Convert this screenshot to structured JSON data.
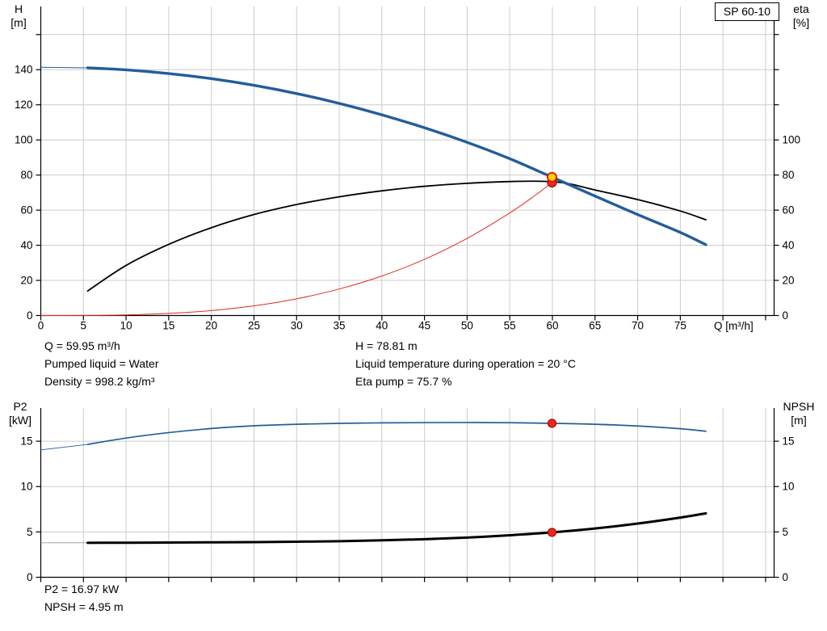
{
  "title_box": "SP 60-10",
  "colors": {
    "h_curve": "#235d9a",
    "eta_curve": "#000000",
    "duty_curve": "#e02b20",
    "p2_curve": "#235d9a",
    "npsh_curve": "#000000",
    "npsh_lead": "#999999",
    "grid": "#cccccc",
    "axis": "#000000",
    "duty_marker_fill": "#f42613",
    "duty_marker_ring": "#9e0b0f",
    "head_marker_fill": "#ffd400",
    "head_marker_ring": "#e01010"
  },
  "readout_top": {
    "col1": [
      "Q = 59.95 m³/h",
      "Pumped liquid = Water",
      "Density = 998.2 kg/m³"
    ],
    "col2": [
      "H = 78.81 m",
      "Liquid temperature during operation = 20 °C",
      "Eta pump = 75.7 %"
    ]
  },
  "readout_bottom": [
    "P2 = 16.97 kW",
    "NPSH = 4.95 m"
  ],
  "chart_data": [
    {
      "name": "performance",
      "type": "line",
      "x": {
        "title": "Q [m³/h]",
        "min": 0,
        "max": 86,
        "ticks": [
          0,
          5,
          10,
          15,
          20,
          25,
          30,
          35,
          40,
          45,
          50,
          55,
          60,
          65,
          70,
          75,
          80,
          85
        ],
        "labeled_max": 75
      },
      "y_left": {
        "title": [
          "H",
          "[m]"
        ],
        "min": 0,
        "max": 176,
        "ticks": [
          0,
          20,
          40,
          60,
          80,
          100,
          120,
          140,
          160
        ],
        "labeled_max": 140
      },
      "y_right": {
        "title": [
          "eta",
          "[%]"
        ],
        "min": 0,
        "max": 176,
        "ticks": [
          0,
          20,
          40,
          60,
          80,
          100,
          120,
          140,
          160
        ],
        "labeled_max": 100
      },
      "series": [
        {
          "name": "duty-curve",
          "color_key": "duty_curve",
          "width": 1,
          "points": [
            [
              0,
              0
            ],
            [
              5,
              0.04
            ],
            [
              10,
              0.35
            ],
            [
              15,
              1.2
            ],
            [
              20,
              2.8
            ],
            [
              25,
              5.5
            ],
            [
              30,
              9.5
            ],
            [
              35,
              15.1
            ],
            [
              40,
              22.5
            ],
            [
              45,
              32
            ],
            [
              50,
              43.9
            ],
            [
              55,
              58.4
            ],
            [
              58,
              68.5
            ],
            [
              59.95,
              75.7
            ]
          ]
        },
        {
          "name": "eta-curve",
          "color_key": "eta_curve",
          "width": 1.8,
          "points": [
            [
              5.5,
              14
            ],
            [
              10,
              28.5
            ],
            [
              15,
              40.5
            ],
            [
              20,
              50
            ],
            [
              25,
              57.5
            ],
            [
              30,
              63.2
            ],
            [
              35,
              67.6
            ],
            [
              40,
              71
            ],
            [
              45,
              73.6
            ],
            [
              50,
              75.3
            ],
            [
              55,
              76.3
            ],
            [
              58,
              76.5
            ],
            [
              60,
              76.2
            ],
            [
              62,
              75.0
            ],
            [
              65,
              71.5
            ],
            [
              70,
              66
            ],
            [
              75,
              59.5
            ],
            [
              78,
              54.5
            ]
          ]
        },
        {
          "name": "h-curve",
          "color_key": "h_curve",
          "width": 3.4,
          "lead": [
            [
              0,
              141.4
            ],
            [
              5.5,
              141.05
            ]
          ],
          "lead_width": 1,
          "points": [
            [
              5.5,
              141.05
            ],
            [
              10,
              139.9
            ],
            [
              15,
              137.8
            ],
            [
              20,
              134.9
            ],
            [
              25,
              131.1
            ],
            [
              30,
              126.4
            ],
            [
              35,
              120.8
            ],
            [
              40,
              114.3
            ],
            [
              45,
              106.9
            ],
            [
              50,
              98.6
            ],
            [
              55,
              89.3
            ],
            [
              59.95,
              78.81
            ],
            [
              65,
              68.0
            ],
            [
              70,
              57.5
            ],
            [
              75,
              47.3
            ],
            [
              78,
              40.3
            ]
          ]
        }
      ],
      "markers": [
        {
          "name": "duty-point-eta",
          "x": 59.95,
          "y": 75.7,
          "r": 5.5,
          "fill_key": "duty_marker_fill",
          "ring_key": "duty_marker_ring",
          "ring_width": 1.2
        },
        {
          "name": "duty-point-head",
          "x": 59.95,
          "y": 78.81,
          "r": 5.5,
          "fill_key": "head_marker_fill",
          "ring_key": "head_marker_ring",
          "ring_width": 1.8
        }
      ]
    },
    {
      "name": "power-npsh",
      "type": "line",
      "x": {
        "title": "",
        "min": 0,
        "max": 86,
        "ticks": [
          0,
          5,
          10,
          15,
          20,
          25,
          30,
          35,
          40,
          45,
          50,
          55,
          60,
          65,
          70,
          75,
          80,
          85
        ],
        "labeled_max": null
      },
      "y_left": {
        "title": [
          "P2",
          "[kW]"
        ],
        "min": 0,
        "max": 18.66,
        "ticks": [
          0,
          5,
          10,
          15
        ],
        "labeled_max": 15
      },
      "y_right": {
        "title": [
          "NPSH",
          "[m]"
        ],
        "min": 0,
        "max": 18.66,
        "ticks": [
          0,
          5,
          10,
          15
        ],
        "labeled_max": 15
      },
      "series": [
        {
          "name": "p2-curve",
          "color_key": "p2_curve",
          "width": 1.7,
          "lead": [
            [
              0,
              14.05
            ],
            [
              5.5,
              14.65
            ]
          ],
          "lead_width": 0.9,
          "points": [
            [
              5.5,
              14.65
            ],
            [
              10,
              15.35
            ],
            [
              15,
              15.95
            ],
            [
              20,
              16.4
            ],
            [
              25,
              16.7
            ],
            [
              30,
              16.87
            ],
            [
              35,
              16.97
            ],
            [
              40,
              17.02
            ],
            [
              45,
              17.05
            ],
            [
              50,
              17.06
            ],
            [
              55,
              17.04
            ],
            [
              59.95,
              16.97
            ],
            [
              65,
              16.87
            ],
            [
              70,
              16.68
            ],
            [
              75,
              16.38
            ],
            [
              78,
              16.1
            ]
          ]
        },
        {
          "name": "npsh-curve",
          "color_key": "npsh_curve",
          "width": 3,
          "lead": [
            [
              0,
              3.8
            ],
            [
              5.5,
              3.8
            ]
          ],
          "lead_width": 0.9,
          "lead_color_key": "npsh_lead",
          "points": [
            [
              5.5,
              3.8
            ],
            [
              10,
              3.81
            ],
            [
              15,
              3.83
            ],
            [
              20,
              3.85
            ],
            [
              25,
              3.88
            ],
            [
              30,
              3.92
            ],
            [
              35,
              3.98
            ],
            [
              40,
              4.07
            ],
            [
              45,
              4.2
            ],
            [
              50,
              4.38
            ],
            [
              55,
              4.63
            ],
            [
              59.95,
              4.95
            ],
            [
              65,
              5.38
            ],
            [
              70,
              5.92
            ],
            [
              75,
              6.58
            ],
            [
              78,
              7.05
            ]
          ]
        }
      ],
      "markers": [
        {
          "name": "duty-point-p2",
          "x": 59.95,
          "y": 16.97,
          "r": 5,
          "fill_key": "duty_marker_fill",
          "ring_key": "duty_marker_ring",
          "ring_width": 1.2
        },
        {
          "name": "duty-point-npsh",
          "x": 59.95,
          "y": 4.95,
          "r": 5,
          "fill_key": "duty_marker_fill",
          "ring_key": "duty_marker_ring",
          "ring_width": 1.2
        }
      ]
    }
  ]
}
